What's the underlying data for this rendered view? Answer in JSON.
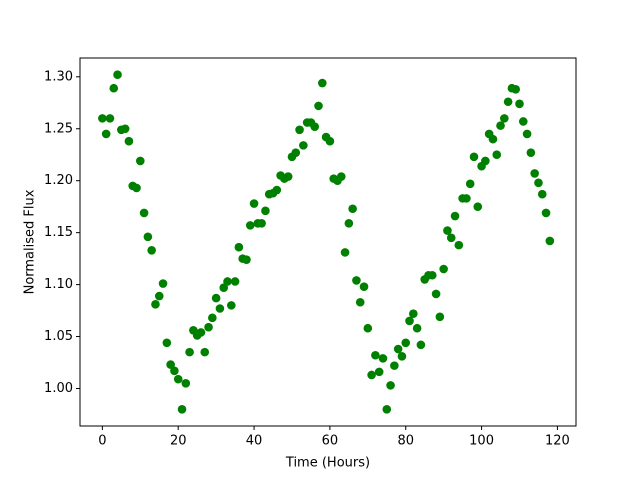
{
  "chart_data": {
    "type": "scatter",
    "x_label": "Time (Hours)",
    "y_label": "Normalised Flux",
    "color": "#008000",
    "x": [
      0,
      1,
      2,
      3,
      4,
      5,
      6,
      7,
      8,
      9,
      10,
      11,
      12,
      13,
      14,
      15,
      16,
      17,
      18,
      19,
      20,
      21,
      22,
      23,
      24,
      25,
      26,
      27,
      28,
      29,
      30,
      31,
      32,
      33,
      34,
      35,
      36,
      37,
      38,
      39,
      40,
      41,
      42,
      43,
      44,
      45,
      46,
      47,
      48,
      49,
      50,
      51,
      52,
      53,
      54,
      55,
      56,
      57,
      58,
      59,
      60,
      61,
      62,
      63,
      64,
      65,
      66,
      67,
      68,
      69,
      70,
      71,
      72,
      73,
      74,
      75,
      76,
      77,
      78,
      79,
      80,
      81,
      82,
      83,
      84,
      85,
      86,
      87,
      88,
      89,
      90,
      91,
      92,
      93,
      94,
      95,
      96,
      97,
      98,
      99,
      100,
      101,
      102,
      103,
      104,
      105,
      106,
      107,
      108,
      109,
      110,
      111,
      112,
      113,
      114,
      115,
      116,
      117,
      118
    ],
    "values": [
      1.26,
      1.245,
      1.26,
      1.289,
      1.302,
      1.249,
      1.25,
      1.238,
      1.195,
      1.193,
      1.219,
      1.169,
      1.146,
      1.133,
      1.081,
      1.089,
      1.101,
      1.044,
      1.023,
      1.017,
      1.009,
      0.98,
      1.005,
      1.035,
      1.056,
      1.051,
      1.054,
      1.035,
      1.059,
      1.068,
      1.087,
      1.077,
      1.097,
      1.103,
      1.08,
      1.103,
      1.136,
      1.125,
      1.124,
      1.157,
      1.178,
      1.159,
      1.159,
      1.171,
      1.187,
      1.188,
      1.191,
      1.205,
      1.202,
      1.204,
      1.223,
      1.227,
      1.249,
      1.234,
      1.256,
      1.256,
      1.252,
      1.272,
      1.294,
      1.242,
      1.238,
      1.202,
      1.2,
      1.204,
      1.131,
      1.159,
      1.173,
      1.104,
      1.083,
      1.098,
      1.058,
      1.013,
      1.032,
      1.016,
      1.029,
      0.98,
      1.003,
      1.022,
      1.038,
      1.031,
      1.044,
      1.065,
      1.072,
      1.058,
      1.042,
      1.105,
      1.109,
      1.109,
      1.091,
      1.069,
      1.115,
      1.152,
      1.145,
      1.166,
      1.138,
      1.183,
      1.183,
      1.197,
      1.223,
      1.175,
      1.214,
      1.219,
      1.245,
      1.24,
      1.225,
      1.253,
      1.26,
      1.276,
      1.289,
      1.288,
      1.274,
      1.257,
      1.245,
      1.227,
      1.207,
      1.198,
      1.187,
      1.169,
      1.142
    ],
    "xlim": [
      -5.9,
      124.9
    ],
    "ylim": [
      0.9639,
      1.3181
    ],
    "xticks": [
      0,
      20,
      40,
      60,
      80,
      100,
      120
    ],
    "yticks": [
      {
        "value": 1.0,
        "label": "1.00"
      },
      {
        "value": 1.05,
        "label": "1.05"
      },
      {
        "value": 1.1,
        "label": "1.10"
      },
      {
        "value": 1.15,
        "label": "1.15"
      },
      {
        "value": 1.2,
        "label": "1.20"
      },
      {
        "value": 1.25,
        "label": "1.25"
      },
      {
        "value": 1.3,
        "label": "1.30"
      }
    ]
  }
}
